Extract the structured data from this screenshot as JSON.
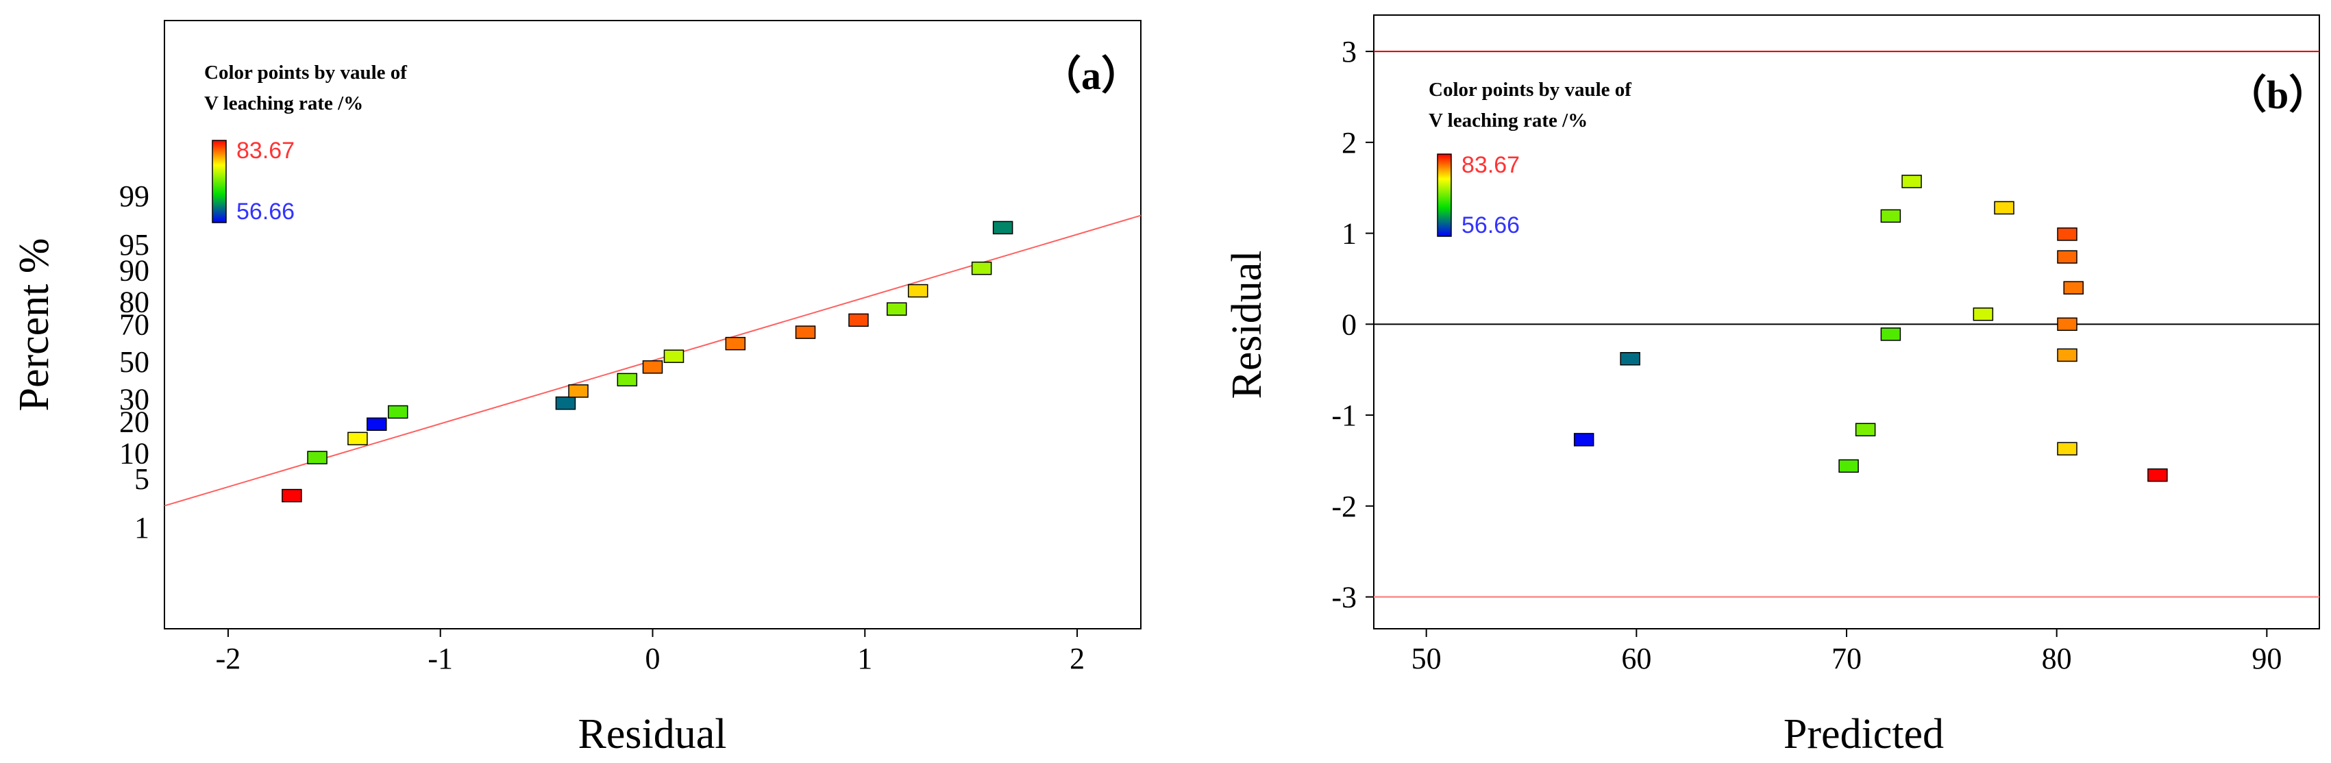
{
  "figure": {
    "legend": {
      "title_line1": "Color points by vaule of",
      "title_line2": "V leaching rate /%",
      "max_label": "83.67",
      "min_label": "56.66",
      "max_color": "#ff3333",
      "min_color": "#3333ff",
      "color_stops": [
        "#0000ff",
        "#00e000",
        "#ffff00",
        "#ff0000"
      ]
    }
  },
  "chart_data": [
    {
      "type": "scatter",
      "subtype": "normal-probability-plot",
      "panel_label": "（a）",
      "xlabel": "Residual",
      "ylabel": "Percent %",
      "xlim": [
        -2.3,
        2.3
      ],
      "x_ticks": [
        -2,
        -1,
        0,
        1,
        2
      ],
      "x_tick_labels": [
        "-2",
        "-1",
        "0",
        "1",
        "2"
      ],
      "y_ticks": [
        1,
        5,
        10,
        20,
        30,
        50,
        70,
        80,
        90,
        95,
        99
      ],
      "y_tick_labels": [
        "1",
        "5",
        "10",
        "20",
        "30",
        "50",
        "70",
        "80",
        "90",
        "95",
        "99"
      ],
      "reference_line": {
        "color": "#ff6060",
        "description": "normal reference line"
      },
      "points": [
        {
          "residual": -1.7,
          "percent": 3.0,
          "rate": 83.7
        },
        {
          "residual": -1.58,
          "percent": 8.9,
          "rate": 69.0
        },
        {
          "residual": -1.39,
          "percent": 14.0,
          "rate": 75.0
        },
        {
          "residual": -1.3,
          "percent": 19.0,
          "rate": 57.0
        },
        {
          "residual": -1.2,
          "percent": 24.0,
          "rate": 68.5
        },
        {
          "residual": -0.41,
          "percent": 28.0,
          "rate": 61.0
        },
        {
          "residual": -0.35,
          "percent": 34.0,
          "rate": 78.0
        },
        {
          "residual": -0.12,
          "percent": 40.0,
          "rate": 70.0
        },
        {
          "residual": 0.0,
          "percent": 47.0,
          "rate": 79.5
        },
        {
          "residual": 0.1,
          "percent": 53.0,
          "rate": 72.5
        },
        {
          "residual": 0.39,
          "percent": 60.0,
          "rate": 79.5
        },
        {
          "residual": 0.72,
          "percent": 66.0,
          "rate": 80.0
        },
        {
          "residual": 0.97,
          "percent": 72.0,
          "rate": 81.0
        },
        {
          "residual": 1.15,
          "percent": 77.0,
          "rate": 70.5
        },
        {
          "residual": 1.25,
          "percent": 84.0,
          "rate": 76.0
        },
        {
          "residual": 1.55,
          "percent": 90.5,
          "rate": 71.5
        },
        {
          "residual": 1.65,
          "percent": 97.0,
          "rate": 62.0
        }
      ]
    },
    {
      "type": "scatter",
      "subtype": "residuals-vs-predicted",
      "panel_label": "（b）",
      "xlabel": "Predicted",
      "ylabel": "Residual",
      "xlim": [
        47.5,
        92.5
      ],
      "ylim": [
        -3.35,
        3.4
      ],
      "x_ticks": [
        50,
        60,
        70,
        80,
        90
      ],
      "x_tick_labels": [
        "50",
        "60",
        "70",
        "80",
        "90"
      ],
      "y_ticks": [
        -3,
        -2,
        -1,
        0,
        1,
        2,
        3
      ],
      "y_tick_labels": [
        "-3",
        "-2",
        "-1",
        "0",
        "1",
        "2",
        "3"
      ],
      "limit_lines": [
        3,
        -3
      ],
      "zero_line": 0,
      "points": [
        {
          "predicted": 57.5,
          "residual": -1.27,
          "rate": 57.0
        },
        {
          "predicted": 59.7,
          "residual": -0.38,
          "rate": 61.0
        },
        {
          "predicted": 70.1,
          "residual": -1.56,
          "rate": 68.5
        },
        {
          "predicted": 70.9,
          "residual": -1.16,
          "rate": 70.0
        },
        {
          "predicted": 72.1,
          "residual": 1.19,
          "rate": 70.0
        },
        {
          "predicted": 72.1,
          "residual": -0.11,
          "rate": 68.5
        },
        {
          "predicted": 73.1,
          "residual": 1.57,
          "rate": 72.5
        },
        {
          "predicted": 76.5,
          "residual": 0.11,
          "rate": 73.0
        },
        {
          "predicted": 77.5,
          "residual": 1.28,
          "rate": 76.0
        },
        {
          "predicted": 80.5,
          "residual": 0.99,
          "rate": 81.0
        },
        {
          "predicted": 80.5,
          "residual": 0.74,
          "rate": 80.0
        },
        {
          "predicted": 80.8,
          "residual": 0.4,
          "rate": 79.5
        },
        {
          "predicted": 80.5,
          "residual": 0.0,
          "rate": 79.5
        },
        {
          "predicted": 80.5,
          "residual": -0.34,
          "rate": 78.0
        },
        {
          "predicted": 80.5,
          "residual": -1.37,
          "rate": 76.0
        },
        {
          "predicted": 84.8,
          "residual": -1.66,
          "rate": 83.7
        }
      ]
    }
  ]
}
